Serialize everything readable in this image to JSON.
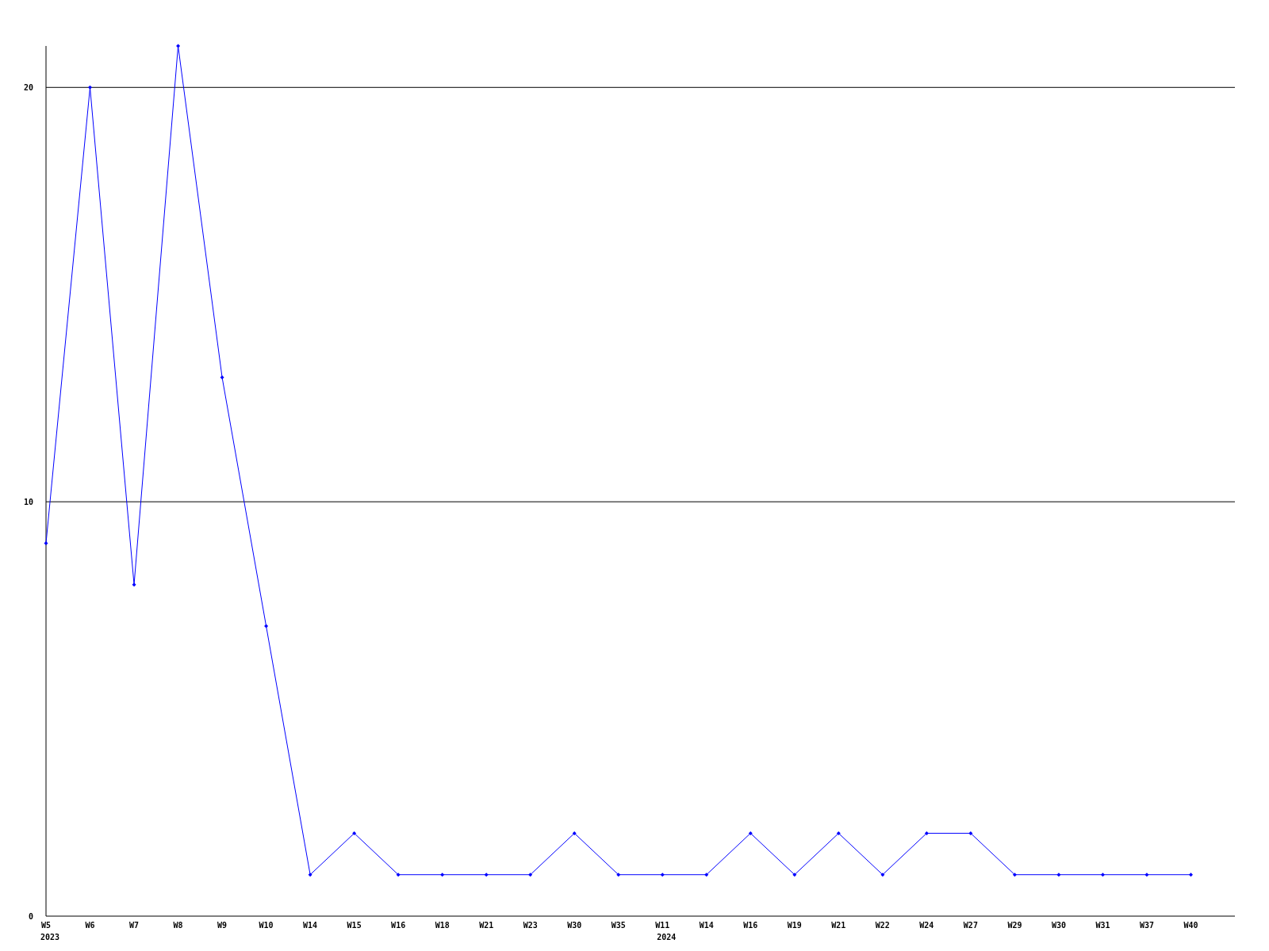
{
  "chart_data": {
    "type": "line",
    "categories": [
      "W5\n2023",
      "W6",
      "W7",
      "W8",
      "W9",
      "W10",
      "W14",
      "W15",
      "W16",
      "W18",
      "W21",
      "W23",
      "W30",
      "W35",
      "W11\n2024",
      "W14",
      "W16",
      "W19",
      "W21",
      "W22",
      "W24",
      "W27",
      "W29",
      "W30",
      "W31",
      "W37",
      "W40"
    ],
    "series": [
      {
        "color": "#0000ff",
        "values": [
          9,
          20,
          8,
          21,
          13,
          7,
          1,
          2,
          1,
          1,
          1,
          1,
          2,
          1,
          1,
          1,
          2,
          1,
          2,
          1,
          2,
          2,
          1,
          1,
          1,
          1,
          1
        ]
      }
    ],
    "ylim": [
      0,
      21
    ],
    "yticks": [
      0,
      10,
      20
    ],
    "grid": "y",
    "marker": "diamond",
    "line_style": "solid"
  }
}
